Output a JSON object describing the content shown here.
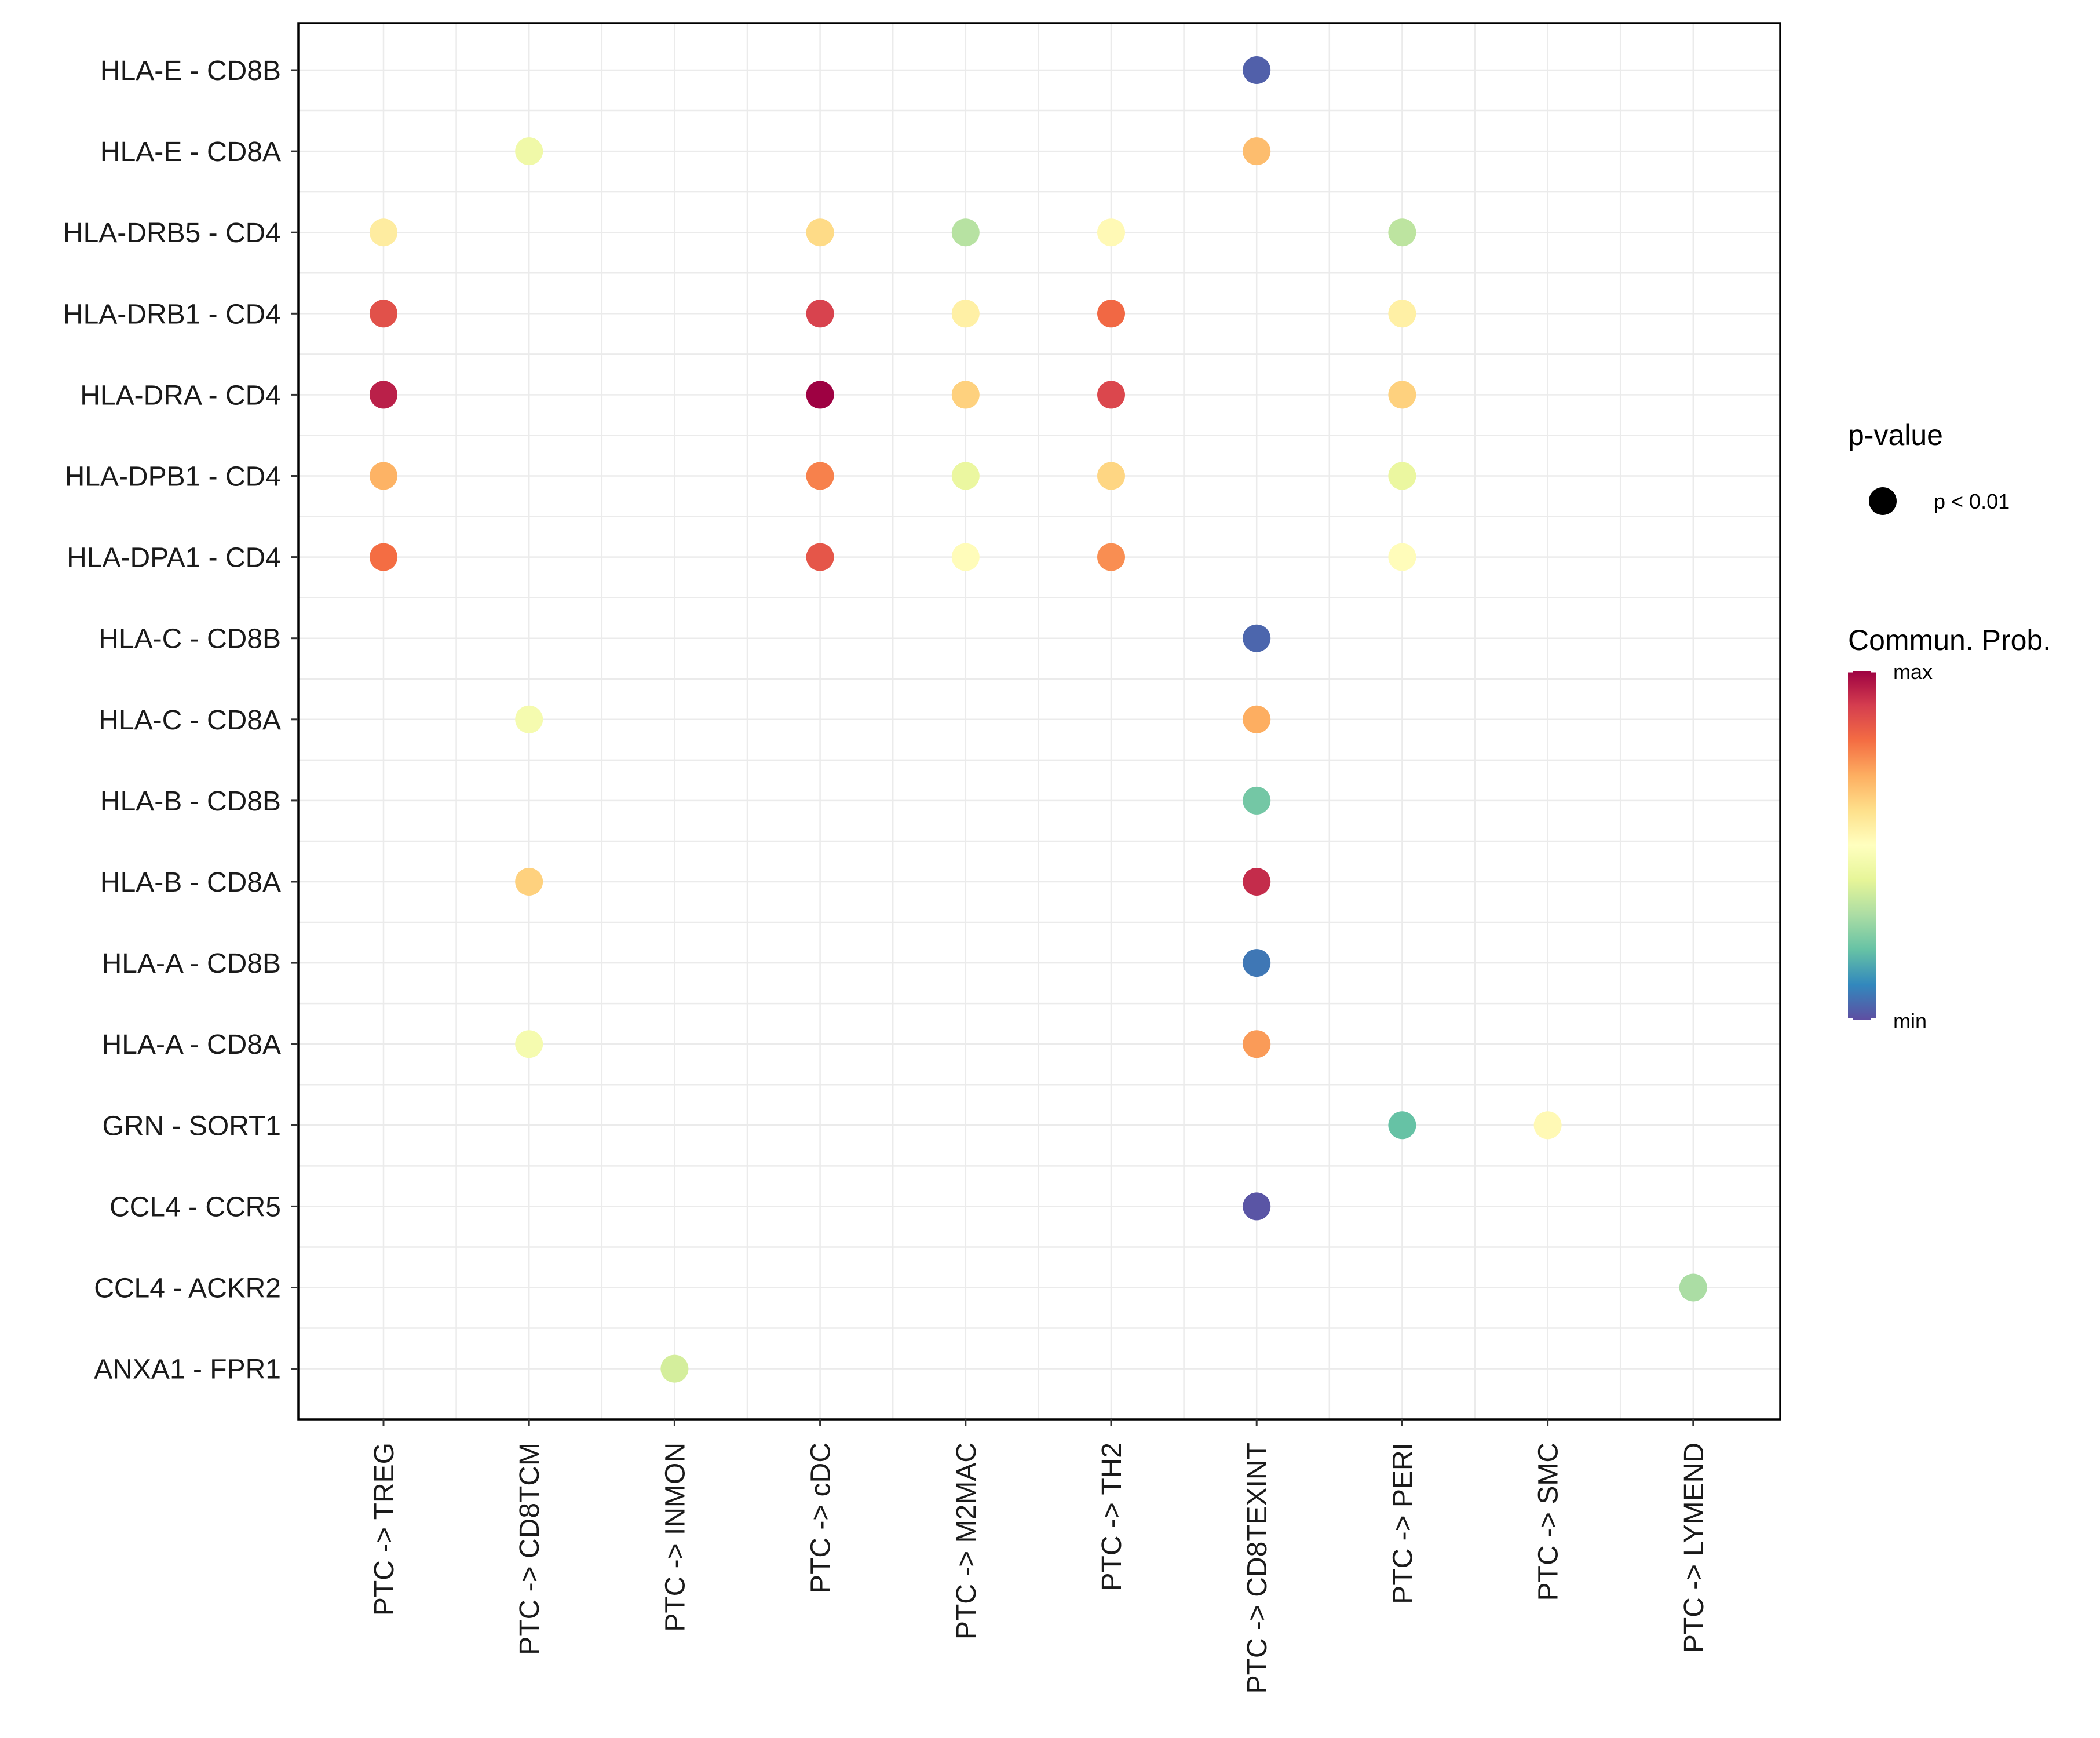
{
  "chart_data": {
    "type": "scatter",
    "title": "",
    "xlabel": "",
    "ylabel": "",
    "x_categories": [
      "PTC -> TREG",
      "PTC -> CD8TCM",
      "PTC -> INMON",
      "PTC -> cDC",
      "PTC -> M2MAC",
      "PTC -> TH2",
      "PTC -> CD8TEXINT",
      "PTC -> PERI",
      "PTC -> SMC",
      "PTC -> LYMEND"
    ],
    "y_categories": [
      "HLA-E - CD8B",
      "HLA-E - CD8A",
      "HLA-DRB5 - CD4",
      "HLA-DRB1 - CD4",
      "HLA-DRA - CD4",
      "HLA-DPB1 - CD4",
      "HLA-DPA1 - CD4",
      "HLA-C - CD8B",
      "HLA-C - CD8A",
      "HLA-B - CD8B",
      "HLA-B - CD8A",
      "HLA-A - CD8B",
      "HLA-A - CD8A",
      "GRN - SORT1",
      "CCL4 - CCR5",
      "CCL4 - ACKR2",
      "ANXA1 - FPR1"
    ],
    "value_scale": "relative communication probability, 0 = min, 1 = max",
    "points": [
      {
        "x": "PTC -> CD8TEXINT",
        "y": "HLA-E - CD8B",
        "prob": 0.03
      },
      {
        "x": "PTC -> CD8TCM",
        "y": "HLA-E - CD8A",
        "prob": 0.44
      },
      {
        "x": "PTC -> CD8TEXINT",
        "y": "HLA-E - CD8A",
        "prob": 0.67
      },
      {
        "x": "PTC -> TREG",
        "y": "HLA-DRB5 - CD4",
        "prob": 0.56
      },
      {
        "x": "PTC -> cDC",
        "y": "HLA-DRB5 - CD4",
        "prob": 0.61
      },
      {
        "x": "PTC -> M2MAC",
        "y": "HLA-DRB5 - CD4",
        "prob": 0.32
      },
      {
        "x": "PTC -> TH2",
        "y": "HLA-DRB5 - CD4",
        "prob": 0.52
      },
      {
        "x": "PTC -> PERI",
        "y": "HLA-DRB5 - CD4",
        "prob": 0.33
      },
      {
        "x": "PTC -> TREG",
        "y": "HLA-DRB1 - CD4",
        "prob": 0.86
      },
      {
        "x": "PTC -> cDC",
        "y": "HLA-DRB1 - CD4",
        "prob": 0.89
      },
      {
        "x": "PTC -> M2MAC",
        "y": "HLA-DRB1 - CD4",
        "prob": 0.55
      },
      {
        "x": "PTC -> TH2",
        "y": "HLA-DRB1 - CD4",
        "prob": 0.81
      },
      {
        "x": "PTC -> PERI",
        "y": "HLA-DRB1 - CD4",
        "prob": 0.55
      },
      {
        "x": "PTC -> TREG",
        "y": "HLA-DRA - CD4",
        "prob": 0.95
      },
      {
        "x": "PTC -> cDC",
        "y": "HLA-DRA - CD4",
        "prob": 1.0
      },
      {
        "x": "PTC -> M2MAC",
        "y": "HLA-DRA - CD4",
        "prob": 0.63
      },
      {
        "x": "PTC -> TH2",
        "y": "HLA-DRA - CD4",
        "prob": 0.88
      },
      {
        "x": "PTC -> PERI",
        "y": "HLA-DRA - CD4",
        "prob": 0.63
      },
      {
        "x": "PTC -> TREG",
        "y": "HLA-DPB1 - CD4",
        "prob": 0.69
      },
      {
        "x": "PTC -> cDC",
        "y": "HLA-DPB1 - CD4",
        "prob": 0.77
      },
      {
        "x": "PTC -> M2MAC",
        "y": "HLA-DPB1 - CD4",
        "prob": 0.42
      },
      {
        "x": "PTC -> TH2",
        "y": "HLA-DPB1 - CD4",
        "prob": 0.62
      },
      {
        "x": "PTC -> PERI",
        "y": "HLA-DPB1 - CD4",
        "prob": 0.42
      },
      {
        "x": "PTC -> TREG",
        "y": "HLA-DPA1 - CD4",
        "prob": 0.8
      },
      {
        "x": "PTC -> cDC",
        "y": "HLA-DPA1 - CD4",
        "prob": 0.85
      },
      {
        "x": "PTC -> M2MAC",
        "y": "HLA-DPA1 - CD4",
        "prob": 0.51
      },
      {
        "x": "PTC -> TH2",
        "y": "HLA-DPA1 - CD4",
        "prob": 0.75
      },
      {
        "x": "PTC -> PERI",
        "y": "HLA-DPA1 - CD4",
        "prob": 0.51
      },
      {
        "x": "PTC -> CD8TEXINT",
        "y": "HLA-C - CD8B",
        "prob": 0.04
      },
      {
        "x": "PTC -> CD8TCM",
        "y": "HLA-C - CD8A",
        "prob": 0.46
      },
      {
        "x": "PTC -> CD8TEXINT",
        "y": "HLA-C - CD8A",
        "prob": 0.7
      },
      {
        "x": "PTC -> CD8TEXINT",
        "y": "HLA-B - CD8B",
        "prob": 0.22
      },
      {
        "x": "PTC -> CD8TCM",
        "y": "HLA-B - CD8A",
        "prob": 0.63
      },
      {
        "x": "PTC -> CD8TEXINT",
        "y": "HLA-B - CD8A",
        "prob": 0.93
      },
      {
        "x": "PTC -> CD8TEXINT",
        "y": "HLA-A - CD8B",
        "prob": 0.07
      },
      {
        "x": "PTC -> CD8TCM",
        "y": "HLA-A - CD8A",
        "prob": 0.46
      },
      {
        "x": "PTC -> CD8TEXINT",
        "y": "HLA-A - CD8A",
        "prob": 0.73
      },
      {
        "x": "PTC -> PERI",
        "y": "GRN - SORT1",
        "prob": 0.2
      },
      {
        "x": "PTC -> SMC",
        "y": "GRN - SORT1",
        "prob": 0.52
      },
      {
        "x": "PTC -> CD8TEXINT",
        "y": "CCL4 - CCR5",
        "prob": 0.01
      },
      {
        "x": "PTC -> LYMEND",
        "y": "CCL4 - ACKR2",
        "prob": 0.3
      },
      {
        "x": "PTC -> INMON",
        "y": "ANXA1 - FPR1",
        "prob": 0.37
      }
    ],
    "legend": {
      "size_title": "p-value",
      "size_label": "p < 0.01",
      "color_title": "Commun. Prob.",
      "color_max_label": "max",
      "color_min_label": "min",
      "palette": [
        "#5E4FA2",
        "#3288BD",
        "#66C2A5",
        "#ABDDA4",
        "#E6F598",
        "#FFFFBF",
        "#FEE08B",
        "#FDAE61",
        "#F46D43",
        "#D53E4F",
        "#9E0142"
      ]
    }
  }
}
